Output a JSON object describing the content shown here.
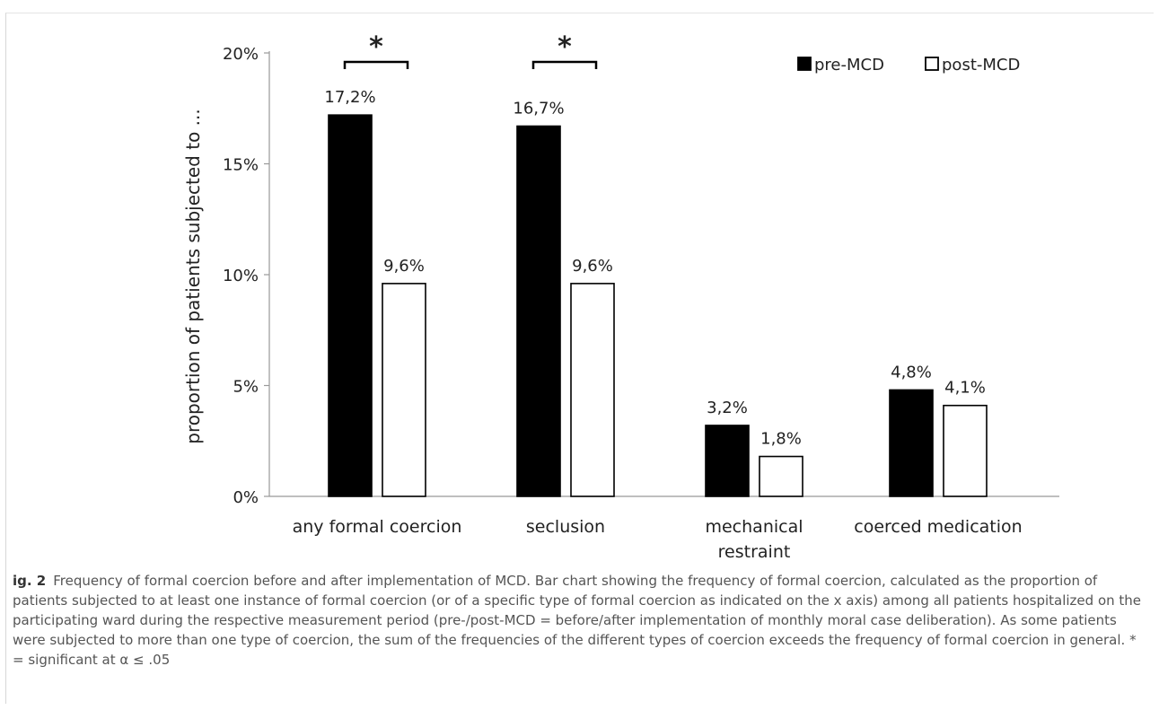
{
  "chart_data": {
    "type": "bar",
    "categories": [
      "any formal coercion",
      "seclusion",
      "mechanical restraint",
      "coerced medication"
    ],
    "series": [
      {
        "name": "pre-MCD",
        "values": [
          17.2,
          16.7,
          3.2,
          4.8
        ],
        "labels": [
          "17,2%",
          "16,7%",
          "3,2%",
          "4,8%"
        ],
        "color": "#000000"
      },
      {
        "name": "post-MCD",
        "values": [
          9.6,
          9.6,
          1.8,
          4.1
        ],
        "labels": [
          "9,6%",
          "9,6%",
          "1,8%",
          "4,1%"
        ],
        "color": "#ffffff"
      }
    ],
    "ylabel": "proportion of patients subjected to ...",
    "xlabel": "",
    "ylim": [
      0,
      20
    ],
    "yticks": [
      0,
      5,
      10,
      15,
      20
    ],
    "ytick_labels": [
      "0%",
      "5%",
      "10%",
      "15%",
      "20%"
    ],
    "grid": false,
    "legend_position": "top-right",
    "significance_marker": "*",
    "significant_categories": [
      0,
      1
    ]
  },
  "caption": {
    "fig_label": "ig. 2",
    "text": "Frequency of formal coercion before and after implementation of MCD. Bar chart showing the frequency of formal coercion, calculated as the proportion of patients subjected to at least one instance of formal coercion (or of a specific type of formal coercion as indicated on the x axis) among all patients hospitalized on the participating ward during the respective measurement period (pre-/post-MCD = before/after implementation of monthly moral case deliberation). As some patients were subjected to more than one type of coercion, the sum of the frequencies of the different types of coercion exceeds the frequency of formal coercion in general. * = significant at α ≤ .05"
  }
}
